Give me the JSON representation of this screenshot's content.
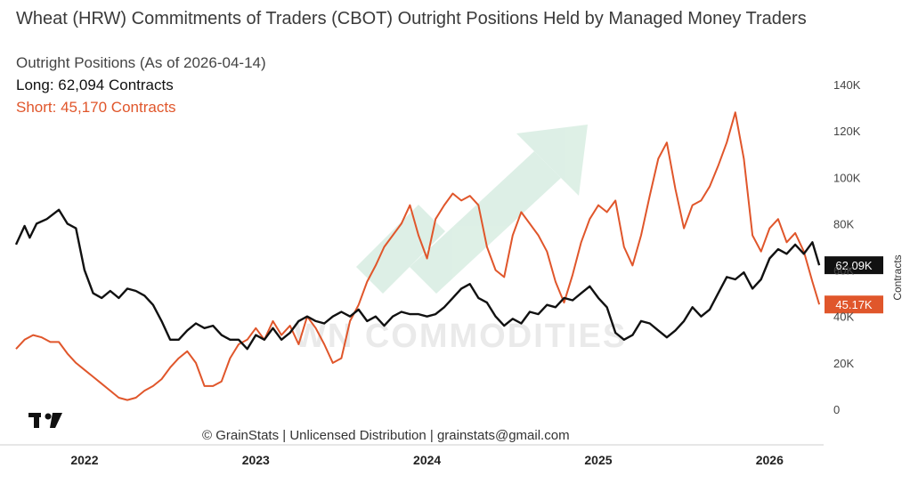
{
  "chart_data": {
    "type": "line",
    "title": "Wheat (HRW) Commitments of Traders (CBOT) Outright Positions Held by Managed Money Traders",
    "subtitle": "Outright Positions (As of 2026-04-14)",
    "ylabel": "Contracts",
    "ylim": [
      0,
      140000
    ],
    "y_ticks": [
      "0",
      "20K",
      "40K",
      "60K",
      "80K",
      "100K",
      "120K",
      "140K"
    ],
    "x_ticks": [
      "2022",
      "2023",
      "2024",
      "2025",
      "2026"
    ],
    "grid": false,
    "x_range": [
      2021.6,
      2026.3
    ],
    "series": [
      {
        "name": "Long",
        "legend": "Long: 62,094 Contracts",
        "last_label": "62.09K",
        "color": "#111111",
        "points": [
          [
            2021.6,
            71000
          ],
          [
            2021.65,
            79000
          ],
          [
            2021.68,
            74000
          ],
          [
            2021.72,
            80000
          ],
          [
            2021.78,
            82000
          ],
          [
            2021.85,
            86000
          ],
          [
            2021.9,
            80000
          ],
          [
            2021.95,
            78000
          ],
          [
            2022.0,
            60000
          ],
          [
            2022.05,
            50000
          ],
          [
            2022.1,
            48000
          ],
          [
            2022.15,
            51000
          ],
          [
            2022.2,
            48000
          ],
          [
            2022.25,
            52000
          ],
          [
            2022.3,
            51000
          ],
          [
            2022.35,
            49000
          ],
          [
            2022.4,
            45000
          ],
          [
            2022.45,
            38000
          ],
          [
            2022.5,
            30000
          ],
          [
            2022.55,
            30000
          ],
          [
            2022.6,
            34000
          ],
          [
            2022.65,
            37000
          ],
          [
            2022.7,
            35000
          ],
          [
            2022.75,
            36000
          ],
          [
            2022.8,
            32000
          ],
          [
            2022.85,
            30000
          ],
          [
            2022.9,
            30000
          ],
          [
            2022.95,
            26000
          ],
          [
            2023.0,
            32000
          ],
          [
            2023.05,
            30000
          ],
          [
            2023.1,
            35000
          ],
          [
            2023.15,
            30000
          ],
          [
            2023.2,
            33000
          ],
          [
            2023.25,
            38000
          ],
          [
            2023.3,
            40000
          ],
          [
            2023.35,
            38000
          ],
          [
            2023.4,
            37000
          ],
          [
            2023.45,
            40000
          ],
          [
            2023.5,
            42000
          ],
          [
            2023.55,
            40000
          ],
          [
            2023.6,
            43000
          ],
          [
            2023.65,
            38000
          ],
          [
            2023.7,
            40000
          ],
          [
            2023.75,
            36000
          ],
          [
            2023.8,
            40000
          ],
          [
            2023.85,
            42000
          ],
          [
            2023.9,
            41000
          ],
          [
            2023.95,
            41000
          ],
          [
            2024.0,
            40000
          ],
          [
            2024.05,
            41000
          ],
          [
            2024.1,
            44000
          ],
          [
            2024.15,
            48000
          ],
          [
            2024.2,
            52000
          ],
          [
            2024.25,
            54000
          ],
          [
            2024.3,
            48000
          ],
          [
            2024.35,
            46000
          ],
          [
            2024.4,
            40000
          ],
          [
            2024.45,
            36000
          ],
          [
            2024.5,
            39000
          ],
          [
            2024.55,
            37000
          ],
          [
            2024.6,
            42000
          ],
          [
            2024.65,
            41000
          ],
          [
            2024.7,
            45000
          ],
          [
            2024.75,
            44000
          ],
          [
            2024.8,
            48000
          ],
          [
            2024.85,
            47000
          ],
          [
            2024.9,
            50000
          ],
          [
            2024.95,
            53000
          ],
          [
            2025.0,
            48000
          ],
          [
            2025.05,
            44000
          ],
          [
            2025.1,
            33000
          ],
          [
            2025.15,
            30000
          ],
          [
            2025.2,
            32000
          ],
          [
            2025.25,
            38000
          ],
          [
            2025.3,
            37000
          ],
          [
            2025.35,
            34000
          ],
          [
            2025.4,
            31000
          ],
          [
            2025.45,
            34000
          ],
          [
            2025.5,
            38000
          ],
          [
            2025.55,
            44000
          ],
          [
            2025.6,
            40000
          ],
          [
            2025.65,
            43000
          ],
          [
            2025.7,
            50000
          ],
          [
            2025.75,
            57000
          ],
          [
            2025.8,
            56000
          ],
          [
            2025.85,
            59000
          ],
          [
            2025.9,
            52000
          ],
          [
            2025.95,
            56000
          ],
          [
            2026.0,
            65000
          ],
          [
            2026.05,
            69000
          ],
          [
            2026.1,
            67000
          ],
          [
            2026.15,
            71000
          ],
          [
            2026.2,
            67000
          ],
          [
            2026.25,
            72000
          ],
          [
            2026.29,
            62094
          ]
        ]
      },
      {
        "name": "Short",
        "legend": "Short: 45,170 Contracts",
        "last_label": "45.17K",
        "color": "#e0562b",
        "points": [
          [
            2021.6,
            26000
          ],
          [
            2021.65,
            30000
          ],
          [
            2021.7,
            32000
          ],
          [
            2021.75,
            31000
          ],
          [
            2021.8,
            29000
          ],
          [
            2021.85,
            29000
          ],
          [
            2021.9,
            24000
          ],
          [
            2021.95,
            20000
          ],
          [
            2022.0,
            17000
          ],
          [
            2022.05,
            14000
          ],
          [
            2022.1,
            11000
          ],
          [
            2022.15,
            8000
          ],
          [
            2022.2,
            5000
          ],
          [
            2022.25,
            4000
          ],
          [
            2022.3,
            5000
          ],
          [
            2022.35,
            8000
          ],
          [
            2022.4,
            10000
          ],
          [
            2022.45,
            13000
          ],
          [
            2022.5,
            18000
          ],
          [
            2022.55,
            22000
          ],
          [
            2022.6,
            25000
          ],
          [
            2022.65,
            20000
          ],
          [
            2022.7,
            10000
          ],
          [
            2022.75,
            10000
          ],
          [
            2022.8,
            12000
          ],
          [
            2022.85,
            22000
          ],
          [
            2022.9,
            28000
          ],
          [
            2022.95,
            30000
          ],
          [
            2023.0,
            35000
          ],
          [
            2023.05,
            30000
          ],
          [
            2023.1,
            38000
          ],
          [
            2023.15,
            32000
          ],
          [
            2023.2,
            36000
          ],
          [
            2023.25,
            28000
          ],
          [
            2023.3,
            40000
          ],
          [
            2023.35,
            35000
          ],
          [
            2023.4,
            28000
          ],
          [
            2023.45,
            20000
          ],
          [
            2023.5,
            22000
          ],
          [
            2023.55,
            38000
          ],
          [
            2023.6,
            45000
          ],
          [
            2023.65,
            55000
          ],
          [
            2023.7,
            62000
          ],
          [
            2023.75,
            70000
          ],
          [
            2023.8,
            75000
          ],
          [
            2023.85,
            80000
          ],
          [
            2023.9,
            88000
          ],
          [
            2023.95,
            75000
          ],
          [
            2024.0,
            65000
          ],
          [
            2024.05,
            82000
          ],
          [
            2024.1,
            88000
          ],
          [
            2024.15,
            93000
          ],
          [
            2024.2,
            90000
          ],
          [
            2024.25,
            92000
          ],
          [
            2024.3,
            88000
          ],
          [
            2024.35,
            70000
          ],
          [
            2024.4,
            60000
          ],
          [
            2024.45,
            57000
          ],
          [
            2024.5,
            75000
          ],
          [
            2024.55,
            85000
          ],
          [
            2024.6,
            80000
          ],
          [
            2024.65,
            75000
          ],
          [
            2024.7,
            68000
          ],
          [
            2024.75,
            55000
          ],
          [
            2024.8,
            46000
          ],
          [
            2024.85,
            58000
          ],
          [
            2024.9,
            72000
          ],
          [
            2024.95,
            82000
          ],
          [
            2025.0,
            88000
          ],
          [
            2025.05,
            85000
          ],
          [
            2025.1,
            90000
          ],
          [
            2025.15,
            70000
          ],
          [
            2025.2,
            62000
          ],
          [
            2025.25,
            75000
          ],
          [
            2025.3,
            92000
          ],
          [
            2025.35,
            108000
          ],
          [
            2025.4,
            115000
          ],
          [
            2025.45,
            95000
          ],
          [
            2025.5,
            78000
          ],
          [
            2025.55,
            88000
          ],
          [
            2025.6,
            90000
          ],
          [
            2025.65,
            96000
          ],
          [
            2025.7,
            105000
          ],
          [
            2025.75,
            115000
          ],
          [
            2025.8,
            128000
          ],
          [
            2025.85,
            108000
          ],
          [
            2025.9,
            75000
          ],
          [
            2025.95,
            68000
          ],
          [
            2026.0,
            78000
          ],
          [
            2026.05,
            82000
          ],
          [
            2026.1,
            72000
          ],
          [
            2026.15,
            76000
          ],
          [
            2026.2,
            68000
          ],
          [
            2026.25,
            55000
          ],
          [
            2026.29,
            45170
          ]
        ]
      }
    ]
  },
  "footer": "© GrainStats | Unlicensed Distribution | grainstats@gmail.com",
  "watermark": "WN COMMODITIES",
  "colors": {
    "long": "#111111",
    "short": "#e0562b",
    "watermark_arrow": "#b5ddc8"
  }
}
